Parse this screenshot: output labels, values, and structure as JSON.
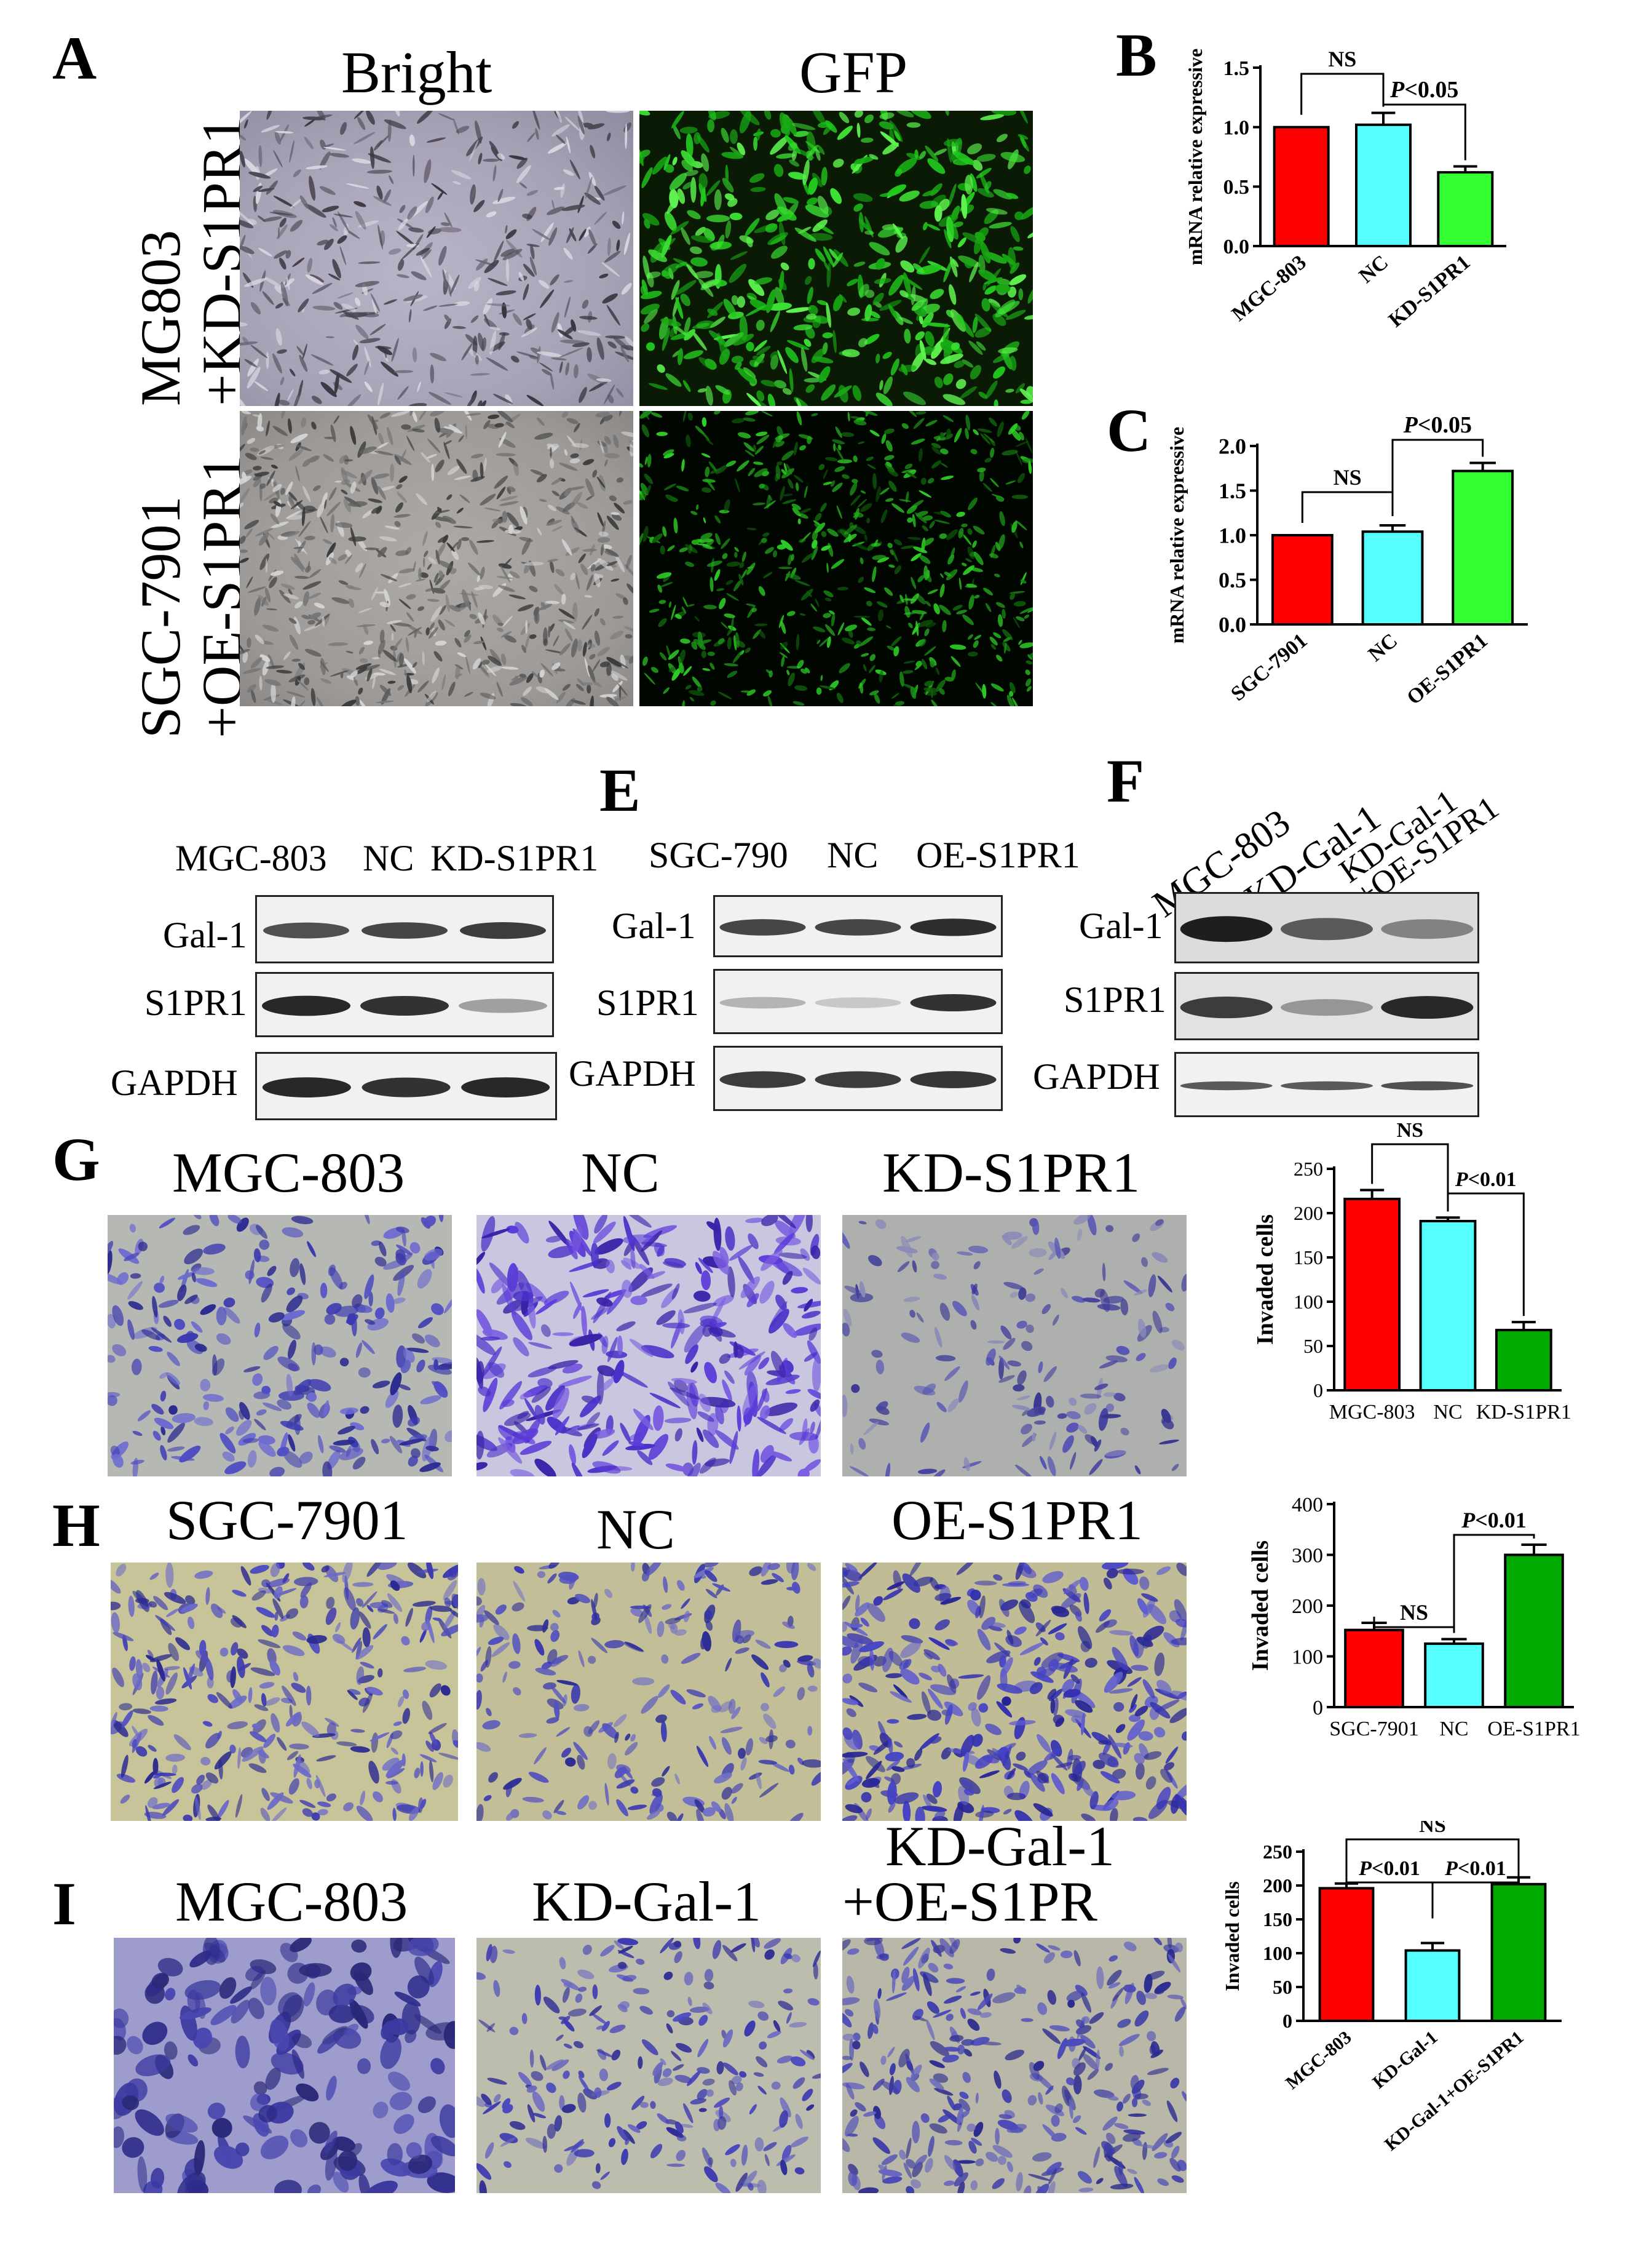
{
  "panelA": {
    "label": "A",
    "col_headers": [
      "Bright",
      "GFP"
    ],
    "row_labels": [
      [
        "MG803",
        "+KD-S1PR1"
      ],
      [
        "SGC-7901",
        "+OE-S1PR1"
      ]
    ]
  },
  "panelB": {
    "label": "B",
    "comparisons": [
      "NS",
      "P<0.05"
    ]
  },
  "panelC": {
    "label": "C",
    "comparisons": [
      "NS",
      "P<0.05"
    ]
  },
  "panelD": {
    "lanes": [
      "MGC-803",
      "NC",
      "KD-S1PR1"
    ],
    "rows": [
      "Gal-1",
      "S1PR1",
      "GAPDH"
    ]
  },
  "panelE": {
    "label": "E",
    "lanes": [
      "SGC-790",
      "NC",
      "OE-S1PR1"
    ],
    "rows": [
      "Gal-1",
      "S1PR1",
      "GAPDH"
    ]
  },
  "panelF": {
    "label": "F",
    "lanes": [
      "MGC-803",
      "KD-Gal-1",
      "KD-Gal-1",
      "+OE-S1PR1"
    ],
    "rows": [
      "Gal-1",
      "S1PR1",
      "GAPDH"
    ]
  },
  "panelG": {
    "label": "G",
    "images": [
      "MGC-803",
      "NC",
      "KD-S1PR1"
    ],
    "comparisons": [
      "NS",
      "P<0.01"
    ]
  },
  "panelH": {
    "label": "H",
    "images": [
      "SGC-7901",
      "NC",
      "OE-S1PR1"
    ],
    "comparisons": [
      "NS",
      "P<0.01"
    ]
  },
  "panelI": {
    "label": "I",
    "images": [
      "MGC-803",
      "KD-Gal-1",
      "KD-Gal-1",
      "+OE-S1PR"
    ],
    "comparisons": [
      "NS",
      "P<0.01",
      "P<0.01"
    ]
  },
  "chart_data": [
    {
      "panel": "B",
      "type": "bar",
      "categories": [
        "MGC-803",
        "NC",
        "KD-S1PR1"
      ],
      "values": [
        1.0,
        1.02,
        0.62
      ],
      "errors": [
        0.0,
        0.1,
        0.05
      ],
      "ylabel": "mRNA relative expressive",
      "ylim": [
        0,
        1.5
      ],
      "yticks": [
        "0.0",
        "0.5",
        "1.0",
        "1.5"
      ],
      "colors": [
        "#ff0000",
        "#55ffff",
        "#33ff33"
      ]
    },
    {
      "panel": "C",
      "type": "bar",
      "categories": [
        "SGC-7901",
        "NC",
        "OE-S1PR1"
      ],
      "values": [
        1.0,
        1.04,
        1.72
      ],
      "errors": [
        0.0,
        0.07,
        0.09
      ],
      "ylabel": "mRNA relative expressive",
      "ylim": [
        0,
        2.0
      ],
      "yticks": [
        "0.0",
        "0.5",
        "1.0",
        "1.5",
        "2.0"
      ],
      "colors": [
        "#ff0000",
        "#55ffff",
        "#33ff33"
      ]
    },
    {
      "panel": "G",
      "type": "bar",
      "categories": [
        "MGC-803",
        "NC",
        "KD-S1PR1"
      ],
      "values": [
        216,
        191,
        68
      ],
      "errors": [
        10,
        4,
        9
      ],
      "ylabel": "Invaded cells",
      "ylim": [
        0,
        250
      ],
      "yticks": [
        "0",
        "50",
        "100",
        "150",
        "200",
        "250"
      ],
      "colors": [
        "#ff0000",
        "#55ffff",
        "#00aa00"
      ]
    },
    {
      "panel": "H",
      "type": "bar",
      "categories": [
        "SGC-7901",
        "NC",
        "OE-S1PR1"
      ],
      "values": [
        152,
        125,
        300
      ],
      "errors": [
        14,
        9,
        20
      ],
      "ylabel": "Invaded cells",
      "ylim": [
        0,
        400
      ],
      "yticks": [
        "0",
        "100",
        "200",
        "300",
        "400"
      ],
      "colors": [
        "#ff0000",
        "#55ffff",
        "#00aa00"
      ]
    },
    {
      "panel": "I",
      "type": "bar",
      "categories": [
        "MGC-803",
        "KD-Gal-1",
        "KD-Gal-1+OE-S1PR1"
      ],
      "values": [
        196,
        104,
        202
      ],
      "errors": [
        7,
        11,
        10
      ],
      "ylabel": "Invaded cells",
      "ylim": [
        0,
        250
      ],
      "yticks": [
        "0",
        "50",
        "100",
        "150",
        "200",
        "250"
      ],
      "colors": [
        "#ff0000",
        "#55ffff",
        "#00aa00"
      ]
    }
  ]
}
